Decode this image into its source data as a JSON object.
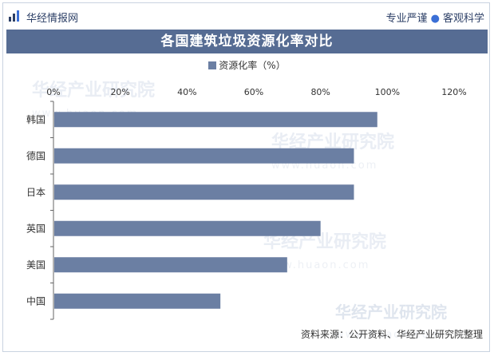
{
  "header": {
    "brand": "华经情报网",
    "tagline_left": "专业严谨",
    "tagline_right": "客观科学"
  },
  "watermark": {
    "text": "华经产业研究院",
    "url": "www.huaon.com"
  },
  "source": "资料来源：公开资料、华经产业研究院整理",
  "colors": {
    "title_bar": "#566c93",
    "bar": "#6b7fa3",
    "brand": "#2c3f66"
  },
  "chart_data": {
    "type": "bar",
    "orientation": "horizontal",
    "title": "各国建筑垃圾资源化率对比",
    "legend": {
      "position": "top",
      "entries": [
        "资源化率（%）"
      ]
    },
    "categories": [
      "韩国",
      "德国",
      "日本",
      "英国",
      "美国",
      "中国"
    ],
    "series": [
      {
        "name": "资源化率（%）",
        "values": [
          97,
          90,
          90,
          80,
          70,
          50
        ]
      }
    ],
    "xlim": [
      0,
      120
    ],
    "xticks": [
      0,
      20,
      40,
      60,
      80,
      100,
      120
    ],
    "tick_format": "percent",
    "grid": false
  }
}
